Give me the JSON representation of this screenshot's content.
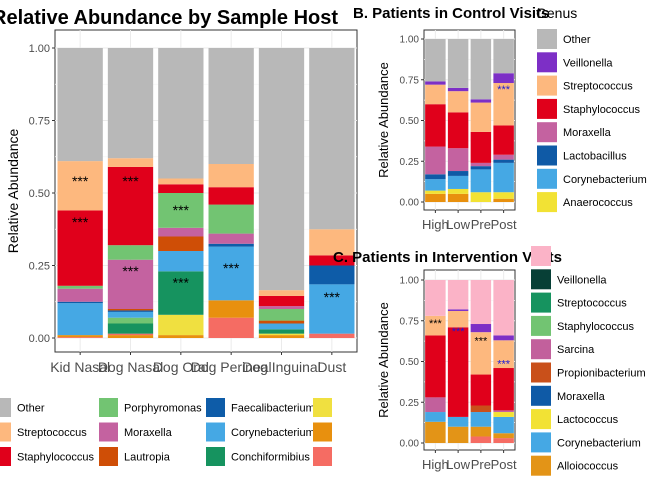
{
  "colors": {
    "Other": "#b8b8b8",
    "Streptococcus": "#fdb87e",
    "Staphylococcus": "#e0001b",
    "Porphyromonas": "#72c472",
    "Moraxella": "#c462a0",
    "Lautropia": "#cf4e06",
    "Faecalibacterium": "#0e5ca8",
    "Corynebacterium": "#45a8e4",
    "Conchiformibius": "#16935f",
    "Veillonella": "#7d2fc6",
    "Lactobacillus": "#0f5aa6",
    "Anaerococcus": "#f2e234",
    "Sarcina": "#c2609c",
    "Propionibacterium": "#c9501a",
    "Lactococcus": "#f2e234",
    "Alloiococcus": "#e39417",
    "Pink": "#fbb3c7",
    "DarkTeal": "#073f36",
    "Salmon": "#f56c63",
    "Orange": "#e8900e",
    "Yellow": "#f0e040",
    "Gray": "#b8b8b8",
    "Black": "#000000",
    "Blue": "#1919d8"
  },
  "chart_data": [
    {
      "id": "A",
      "type": "bar",
      "title": "Relative Abundance by Sample Host",
      "xlabel": "",
      "ylabel": "Relative Abundance",
      "ylim": [
        0,
        1
      ],
      "yticks": [
        "0.00",
        "0.25",
        "0.50",
        "0.75",
        "1.00"
      ],
      "categories": [
        "Kid Nasal",
        "Dog Nasal",
        "Dog Oral",
        "Dog Perineal",
        "Dog Inguinal",
        "Dust"
      ],
      "stacks": [
        [
          [
            "Salmon",
            0.003
          ],
          [
            "Orange",
            0.007
          ],
          [
            "Corynebacterium",
            0.11
          ],
          [
            "Faecalibacterium",
            0.005
          ],
          [
            "Moraxella",
            0.045
          ],
          [
            "Porphyromonas",
            0.01
          ],
          [
            "Staphylococcus",
            0.26
          ],
          [
            "Streptococcus",
            0.17
          ],
          [
            "Other",
            0.39
          ]
        ],
        [
          [
            "Orange",
            0.01
          ],
          [
            "Salmon",
            0.005
          ],
          [
            "Conchiformibius",
            0.035
          ],
          [
            "Porphyromonas",
            0.02
          ],
          [
            "Corynebacterium",
            0.02
          ],
          [
            "Faecalibacterium",
            0.005
          ],
          [
            "Lautropia",
            0.005
          ],
          [
            "Moraxella",
            0.17
          ],
          [
            "Porphyromonas",
            0.05
          ],
          [
            "Staphylococcus",
            0.27
          ],
          [
            "Streptococcus",
            0.03
          ],
          [
            "Other",
            0.38
          ]
        ],
        [
          [
            "Orange",
            0.01
          ],
          [
            "Yellow",
            0.07
          ],
          [
            "Conchiformibius",
            0.15
          ],
          [
            "Corynebacterium",
            0.07
          ],
          [
            "Lautropia",
            0.05
          ],
          [
            "Moraxella",
            0.03
          ],
          [
            "Porphyromonas",
            0.12
          ],
          [
            "Staphylococcus",
            0.03
          ],
          [
            "Streptococcus",
            0.02
          ],
          [
            "Other",
            0.45
          ]
        ],
        [
          [
            "Salmon",
            0.07
          ],
          [
            "Orange",
            0.06
          ],
          [
            "Corynebacterium",
            0.185
          ],
          [
            "Faecalibacterium",
            0.01
          ],
          [
            "Moraxella",
            0.035
          ],
          [
            "Porphyromonas",
            0.1
          ],
          [
            "Staphylococcus",
            0.06
          ],
          [
            "Streptococcus",
            0.08
          ],
          [
            "Other",
            0.4
          ]
        ],
        [
          [
            "Orange",
            0.01
          ],
          [
            "Yellow",
            0.005
          ],
          [
            "Conchiformibius",
            0.015
          ],
          [
            "Corynebacterium",
            0.02
          ],
          [
            "Lautropia",
            0.01
          ],
          [
            "Porphyromonas",
            0.04
          ],
          [
            "Moraxella",
            0.01
          ],
          [
            "Staphylococcus",
            0.035
          ],
          [
            "Streptococcus",
            0.02
          ],
          [
            "Other",
            0.835
          ]
        ],
        [
          [
            "Salmon",
            0.015
          ],
          [
            "Corynebacterium",
            0.17
          ],
          [
            "Faecalibacterium",
            0.065
          ],
          [
            "Staphylococcus",
            0.035
          ],
          [
            "Streptococcus",
            0.09
          ],
          [
            "Other",
            0.625
          ]
        ]
      ],
      "annotations": [
        {
          "cat": 0,
          "y": 0.55,
          "text": "***"
        },
        {
          "cat": 0,
          "y": 0.41,
          "text": "***"
        },
        {
          "cat": 1,
          "y": 0.55,
          "text": "***"
        },
        {
          "cat": 1,
          "y": 0.24,
          "text": "***"
        },
        {
          "cat": 2,
          "y": 0.45,
          "text": "***"
        },
        {
          "cat": 2,
          "y": 0.2,
          "text": "***"
        },
        {
          "cat": 3,
          "y": 0.25,
          "text": "***"
        },
        {
          "cat": 5,
          "y": 0.15,
          "text": "***"
        }
      ],
      "legend": {
        "entries": [
          [
            "Other",
            "Other"
          ],
          [
            "Streptococcus",
            "Streptococcus"
          ],
          [
            "Staphylococcus",
            "Staphylococcus"
          ],
          [
            "Porphyromonas",
            "Porphyromonas"
          ],
          [
            "Moraxella",
            "Moraxella"
          ],
          [
            "Lautropia",
            "Lautropia"
          ],
          [
            "Faecalibacterium",
            "Faecalibacterium"
          ],
          [
            "Corynebacterium",
            "Corynebacterium"
          ],
          [
            "Conchiformibius",
            "Conchiformibius"
          ],
          [
            "",
            "Yellow"
          ],
          [
            "",
            "Orange"
          ],
          [
            "",
            "Salmon"
          ]
        ]
      }
    },
    {
      "id": "B",
      "type": "bar",
      "title": "B. Patients in Control Visits",
      "xlabel": "",
      "ylabel": "Relative Abundance",
      "ylim": [
        0,
        1
      ],
      "yticks": [
        "0.00",
        "0.25",
        "0.50",
        "0.75",
        "1.00"
      ],
      "categories": [
        "High",
        "Low",
        "Pre",
        "Post"
      ],
      "stacks": [
        [
          [
            "Orange",
            0.05
          ],
          [
            "Anaerococcus",
            0.02
          ],
          [
            "Corynebacterium",
            0.07
          ],
          [
            "Lactobacillus",
            0.03
          ],
          [
            "Moraxella",
            0.17
          ],
          [
            "Staphylococcus",
            0.26
          ],
          [
            "Streptococcus",
            0.12
          ],
          [
            "Veillonella",
            0.02
          ],
          [
            "Other",
            0.26
          ]
        ],
        [
          [
            "Orange",
            0.05
          ],
          [
            "Anaerococcus",
            0.03
          ],
          [
            "Corynebacterium",
            0.08
          ],
          [
            "Lactobacillus",
            0.03
          ],
          [
            "Moraxella",
            0.14
          ],
          [
            "Staphylococcus",
            0.22
          ],
          [
            "Streptococcus",
            0.13
          ],
          [
            "Veillonella",
            0.02
          ],
          [
            "Other",
            0.3
          ]
        ],
        [
          [
            "Anaerococcus",
            0.06
          ],
          [
            "Corynebacterium",
            0.14
          ],
          [
            "Lactobacillus",
            0.02
          ],
          [
            "Moraxella",
            0.02
          ],
          [
            "Staphylococcus",
            0.19
          ],
          [
            "Streptococcus",
            0.18
          ],
          [
            "Veillonella",
            0.02
          ],
          [
            "Other",
            0.37
          ]
        ],
        [
          [
            "Orange",
            0.02
          ],
          [
            "Anaerococcus",
            0.04
          ],
          [
            "Corynebacterium",
            0.18
          ],
          [
            "Lactobacillus",
            0.02
          ],
          [
            "Moraxella",
            0.03
          ],
          [
            "Staphylococcus",
            0.18
          ],
          [
            "Streptococcus",
            0.26
          ],
          [
            "Veillonella",
            0.06
          ],
          [
            "Other",
            0.21
          ]
        ]
      ],
      "annotations": [
        {
          "cat": 3,
          "y": 0.705,
          "text": "***",
          "color": "Blue"
        }
      ],
      "legend": {
        "title": "Genus",
        "entries": [
          [
            "Other",
            "Other"
          ],
          [
            "Veillonella",
            "Veillonella"
          ],
          [
            "Streptococcus",
            "Streptococcus"
          ],
          [
            "Staphylococcus",
            "Staphylococcus"
          ],
          [
            "Moraxella",
            "Moraxella"
          ],
          [
            "Lactobacillus",
            "Lactobacillus"
          ],
          [
            "Corynebacterium",
            "Corynebacterium"
          ],
          [
            "Anaerococcus",
            "Anaerococcus"
          ]
        ]
      }
    },
    {
      "id": "C",
      "type": "bar",
      "title": "C. Patients in Intervention Visits",
      "xlabel": "",
      "ylabel": "Relative Abundance",
      "ylim": [
        0,
        1
      ],
      "yticks": [
        "0.00",
        "0.25",
        "0.50",
        "0.75",
        "1.00"
      ],
      "categories": [
        "High",
        "Low",
        "Pre",
        "Post"
      ],
      "stacks": [
        [
          [
            "Alloiococcus",
            0.13
          ],
          [
            "Corynebacterium",
            0.06
          ],
          [
            "Sarcina",
            0.09
          ],
          [
            "Staphylococcus",
            0.38
          ],
          [
            "Streptococcus",
            0.12
          ],
          [
            "Pink",
            0.22
          ]
        ],
        [
          [
            "Alloiococcus",
            0.1
          ],
          [
            "Corynebacterium",
            0.06
          ],
          [
            "Staphylococcus",
            0.55
          ],
          [
            "Streptococcus",
            0.1
          ],
          [
            "Veillonella",
            0.01
          ],
          [
            "Pink",
            0.18
          ]
        ],
        [
          [
            "Salmon",
            0.04
          ],
          [
            "Alloiococcus",
            0.06
          ],
          [
            "Corynebacterium",
            0.09
          ],
          [
            "Propionibacterium",
            0.04
          ],
          [
            "Staphylococcus",
            0.19
          ],
          [
            "Streptococcus",
            0.26
          ],
          [
            "Veillonella",
            0.05
          ],
          [
            "Pink",
            0.27
          ]
        ],
        [
          [
            "Salmon",
            0.03
          ],
          [
            "Alloiococcus",
            0.03
          ],
          [
            "Corynebacterium",
            0.1
          ],
          [
            "Lactococcus",
            0.03
          ],
          [
            "Moraxella",
            0.01
          ],
          [
            "Staphylococcus",
            0.26
          ],
          [
            "Streptococcus",
            0.17
          ],
          [
            "Veillonella",
            0.03
          ],
          [
            "Pink",
            0.34
          ]
        ]
      ],
      "annotations": [
        {
          "cat": 0,
          "y": 0.75,
          "text": "***",
          "color": "Black"
        },
        {
          "cat": 1,
          "y": 0.7,
          "text": "***",
          "color": "Blue"
        },
        {
          "cat": 2,
          "y": 0.64,
          "text": "***",
          "color": "Black"
        },
        {
          "cat": 3,
          "y": 0.5,
          "text": "***",
          "color": "Blue"
        }
      ],
      "legend": {
        "title": "",
        "entries": [
          [
            "",
            "Pink"
          ],
          [
            "Veillonella",
            "DarkTeal"
          ],
          [
            "Streptococcus",
            "Conchiformibius"
          ],
          [
            "Staphylococcus",
            "Porphyromonas"
          ],
          [
            "Sarcina",
            "Sarcina"
          ],
          [
            "Propionibacterium",
            "Propionibacterium"
          ],
          [
            "Moraxella",
            "Lactobacillus"
          ],
          [
            "Lactococcus",
            "Lactococcus"
          ],
          [
            "Corynebacterium",
            "Corynebacterium"
          ],
          [
            "Alloiococcus",
            "Alloiococcus"
          ]
        ]
      }
    }
  ]
}
